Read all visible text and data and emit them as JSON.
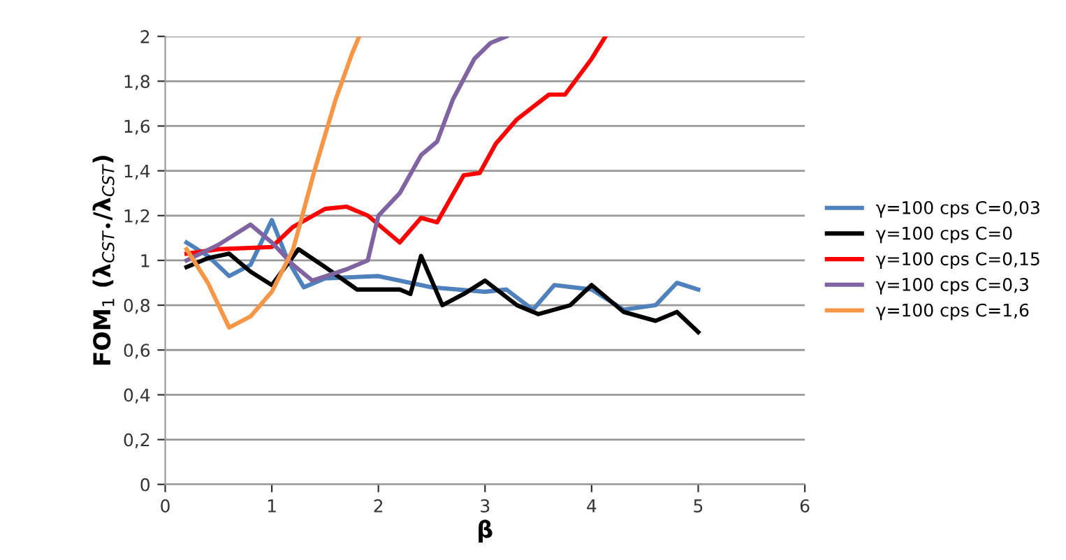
{
  "chart_data": {
    "type": "line",
    "xlabel": "β",
    "ylabel": "FOM$_{1}$ (λ$_{CST}$$_{•}$/λ$_{CST}$)",
    "xlim": [
      0,
      6
    ],
    "xticks": [
      0,
      1,
      2,
      3,
      4,
      5,
      6
    ],
    "ylim": [
      0,
      2
    ],
    "yticks": [
      0,
      {
        "value": 0.2,
        "label": "0,2"
      },
      {
        "value": 0.4,
        "label": "0,4"
      },
      {
        "value": 0.6,
        "label": "0,6"
      },
      {
        "value": 0.8,
        "label": "0,8"
      },
      1,
      {
        "value": 1.2,
        "label": "1,2"
      },
      {
        "value": 1.4,
        "label": "1,4"
      },
      {
        "value": 1.6,
        "label": "1,6"
      },
      {
        "value": 1.8,
        "label": "1,8"
      },
      2
    ],
    "grid": "y",
    "legend": "right",
    "marker": "none",
    "line_style": "solid",
    "series": [
      {
        "name": "γ=100 cps C=0,03",
        "color": "#4f81bd",
        "x": [
          0.2,
          0.4,
          0.6,
          0.8,
          1.0,
          1.15,
          1.3,
          1.5,
          2.0,
          2.5,
          3.0,
          3.2,
          3.45,
          3.65,
          4.0,
          4.3,
          4.6,
          4.8,
          5.0
        ],
        "values": [
          1.08,
          1.02,
          0.93,
          0.98,
          1.18,
          1.0,
          0.88,
          0.92,
          0.93,
          0.88,
          0.86,
          0.87,
          0.78,
          0.89,
          0.87,
          0.78,
          0.8,
          0.9,
          0.87
        ]
      },
      {
        "name": "γ=100 cps C=0",
        "color": "#000000",
        "x": [
          0.2,
          0.4,
          0.6,
          0.8,
          1.0,
          1.25,
          1.5,
          1.8,
          2.2,
          2.3,
          2.4,
          2.6,
          2.8,
          3.0,
          3.3,
          3.5,
          3.8,
          4.0,
          4.3,
          4.6,
          4.8,
          5.0
        ],
        "values": [
          0.97,
          1.01,
          1.03,
          0.95,
          0.89,
          1.05,
          0.97,
          0.87,
          0.87,
          0.85,
          1.02,
          0.8,
          0.85,
          0.91,
          0.8,
          0.76,
          0.8,
          0.89,
          0.77,
          0.73,
          0.77,
          0.68
        ]
      },
      {
        "name": "γ=100 cps C=0,15",
        "color": "#ff0000",
        "x": [
          0.2,
          0.5,
          1.0,
          1.2,
          1.5,
          1.7,
          1.9,
          2.2,
          2.4,
          2.55,
          2.8,
          2.95,
          3.1,
          3.3,
          3.6,
          3.75,
          4.0,
          4.13
        ],
        "values": [
          1.03,
          1.05,
          1.06,
          1.15,
          1.23,
          1.24,
          1.2,
          1.08,
          1.19,
          1.17,
          1.38,
          1.39,
          1.52,
          1.63,
          1.74,
          1.74,
          1.9,
          2.0
        ]
      },
      {
        "name": "γ=100 cps C=0,3",
        "color": "#8064a2",
        "x": [
          0.2,
          0.5,
          0.8,
          1.0,
          1.2,
          1.38,
          1.7,
          1.9,
          2.0,
          2.2,
          2.4,
          2.55,
          2.7,
          2.9,
          3.05,
          3.2
        ],
        "values": [
          1.0,
          1.07,
          1.16,
          1.08,
          0.98,
          0.91,
          0.96,
          1.0,
          1.2,
          1.3,
          1.47,
          1.53,
          1.72,
          1.9,
          1.97,
          2.0
        ]
      },
      {
        "name": "γ=100 cps C=1,6",
        "color": "#f79646",
        "x": [
          0.2,
          0.4,
          0.6,
          0.8,
          1.0,
          1.2,
          1.4,
          1.6,
          1.75,
          1.82
        ],
        "values": [
          1.05,
          0.9,
          0.7,
          0.75,
          0.86,
          1.05,
          1.4,
          1.72,
          1.92,
          2.0
        ]
      }
    ]
  }
}
